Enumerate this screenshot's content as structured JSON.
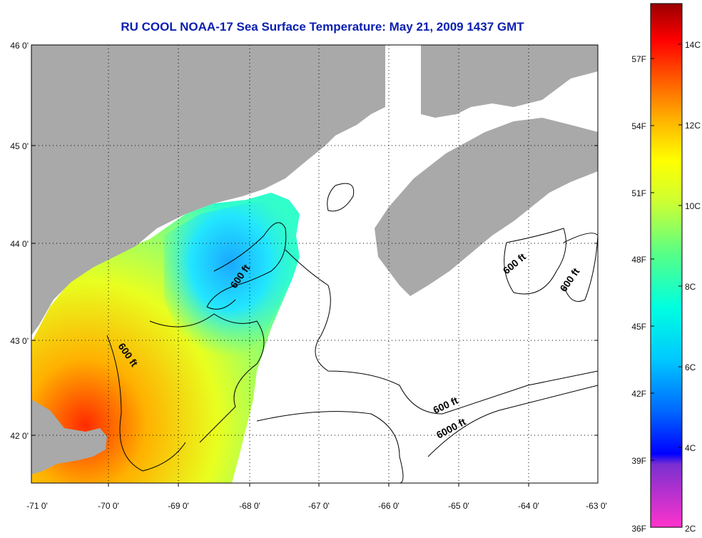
{
  "map": {
    "title": "RU COOL  NOAA-17  Sea Surface Temperature:  May 21, 2009 1437 GMT",
    "lat_ticks": [
      "46 0'",
      "45 0'",
      "44 0'",
      "43 0'",
      "42 0'"
    ],
    "lon_ticks": [
      "-71 0'",
      "-70 0'",
      "-69 0'",
      "-68 0'",
      "-67 0'",
      "-66 0'",
      "-65 0'",
      "-64 0'",
      "-63 0'"
    ],
    "contour_labels": {
      "c1": "600 ft",
      "c2": "600 ft",
      "c3": "600 ft",
      "c4": "6000 ft",
      "c5": "600 ft",
      "c6": "600 ft"
    },
    "colors": {
      "land": "#a9a9a9",
      "no_data": "#ffffff",
      "frame": "#000000"
    }
  },
  "colorbar": {
    "fahrenheit": [
      "57F",
      "54F",
      "51F",
      "48F",
      "45F",
      "42F",
      "39F",
      "36F"
    ],
    "celsius": [
      "14C",
      "12C",
      "10C",
      "8C",
      "6C",
      "4C",
      "2C"
    ]
  }
}
